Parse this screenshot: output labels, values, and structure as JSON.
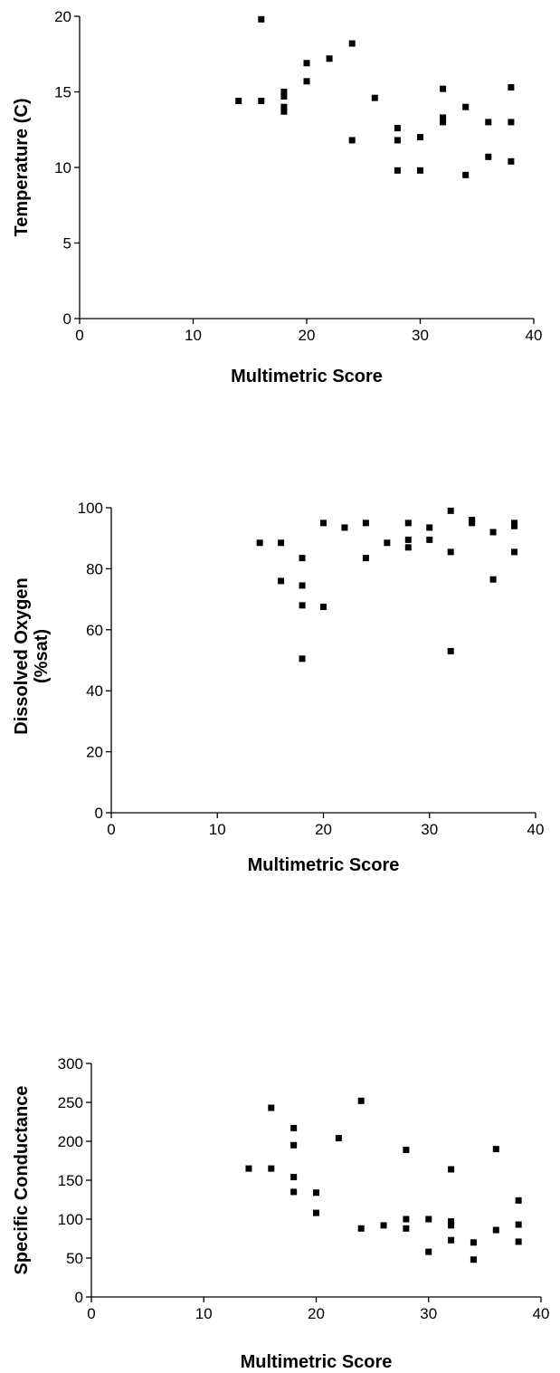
{
  "chart_data": [
    {
      "type": "scatter",
      "xlabel": "Multimetric Score",
      "ylabel": [
        "Temperature (C)"
      ],
      "xlim": [
        0,
        40
      ],
      "ylim": [
        0,
        20
      ],
      "x_ticks": [
        0,
        10,
        20,
        30,
        40
      ],
      "y_ticks": [
        0,
        5,
        10,
        15,
        20
      ],
      "grid": false,
      "marker": "square",
      "color": "#000000",
      "points": [
        {
          "x": 14,
          "y": 14.4
        },
        {
          "x": 16,
          "y": 19.8
        },
        {
          "x": 16,
          "y": 14.4
        },
        {
          "x": 18,
          "y": 15.0
        },
        {
          "x": 18,
          "y": 14.7
        },
        {
          "x": 18,
          "y": 14.0
        },
        {
          "x": 18,
          "y": 13.7
        },
        {
          "x": 20,
          "y": 16.9
        },
        {
          "x": 20,
          "y": 15.7
        },
        {
          "x": 22,
          "y": 17.2
        },
        {
          "x": 24,
          "y": 18.2
        },
        {
          "x": 24,
          "y": 11.8
        },
        {
          "x": 26,
          "y": 14.6
        },
        {
          "x": 28,
          "y": 12.6
        },
        {
          "x": 28,
          "y": 11.8
        },
        {
          "x": 28,
          "y": 9.8
        },
        {
          "x": 30,
          "y": 12.0
        },
        {
          "x": 30,
          "y": 9.8
        },
        {
          "x": 32,
          "y": 15.2
        },
        {
          "x": 32,
          "y": 13.3
        },
        {
          "x": 32,
          "y": 13.0
        },
        {
          "x": 34,
          "y": 14.0
        },
        {
          "x": 34,
          "y": 9.5
        },
        {
          "x": 36,
          "y": 13.0
        },
        {
          "x": 36,
          "y": 10.7
        },
        {
          "x": 38,
          "y": 15.3
        },
        {
          "x": 38,
          "y": 13.0
        },
        {
          "x": 38,
          "y": 10.4
        }
      ]
    },
    {
      "type": "scatter",
      "xlabel": "Multimetric Score",
      "ylabel": [
        "Dissolved Oxygen",
        "(%sat)"
      ],
      "xlim": [
        0,
        40
      ],
      "ylim": [
        0,
        100
      ],
      "x_ticks": [
        0,
        10,
        20,
        30,
        40
      ],
      "y_ticks": [
        0,
        20,
        40,
        60,
        80,
        100
      ],
      "grid": false,
      "marker": "square",
      "color": "#000000",
      "points": [
        {
          "x": 14,
          "y": 88.5
        },
        {
          "x": 16,
          "y": 88.5
        },
        {
          "x": 16,
          "y": 76.0
        },
        {
          "x": 18,
          "y": 83.5
        },
        {
          "x": 18,
          "y": 74.5
        },
        {
          "x": 18,
          "y": 68.0
        },
        {
          "x": 18,
          "y": 50.5
        },
        {
          "x": 20,
          "y": 95.0
        },
        {
          "x": 20,
          "y": 67.5
        },
        {
          "x": 22,
          "y": 93.5
        },
        {
          "x": 24,
          "y": 95.0
        },
        {
          "x": 24,
          "y": 83.5
        },
        {
          "x": 26,
          "y": 88.5
        },
        {
          "x": 28,
          "y": 95.0
        },
        {
          "x": 28,
          "y": 89.5
        },
        {
          "x": 28,
          "y": 87.0
        },
        {
          "x": 30,
          "y": 93.5
        },
        {
          "x": 30,
          "y": 89.5
        },
        {
          "x": 32,
          "y": 99.0
        },
        {
          "x": 32,
          "y": 85.5
        },
        {
          "x": 32,
          "y": 53.0
        },
        {
          "x": 34,
          "y": 96.0
        },
        {
          "x": 34,
          "y": 95.0
        },
        {
          "x": 36,
          "y": 92.0
        },
        {
          "x": 36,
          "y": 76.5
        },
        {
          "x": 38,
          "y": 95.0
        },
        {
          "x": 38,
          "y": 94.0
        },
        {
          "x": 38,
          "y": 85.5
        }
      ]
    },
    {
      "type": "scatter",
      "xlabel": "Multimetric Score",
      "ylabel": [
        "Specific Conductance"
      ],
      "xlim": [
        0,
        40
      ],
      "ylim": [
        0,
        300
      ],
      "x_ticks": [
        0,
        10,
        20,
        30,
        40
      ],
      "y_ticks": [
        0,
        50,
        100,
        150,
        200,
        250,
        300
      ],
      "grid": false,
      "marker": "square",
      "color": "#000000",
      "points": [
        {
          "x": 14,
          "y": 165
        },
        {
          "x": 16,
          "y": 243
        },
        {
          "x": 16,
          "y": 165
        },
        {
          "x": 18,
          "y": 217
        },
        {
          "x": 18,
          "y": 195
        },
        {
          "x": 18,
          "y": 154
        },
        {
          "x": 18,
          "y": 135
        },
        {
          "x": 20,
          "y": 134
        },
        {
          "x": 20,
          "y": 108
        },
        {
          "x": 22,
          "y": 204
        },
        {
          "x": 24,
          "y": 252
        },
        {
          "x": 24,
          "y": 88
        },
        {
          "x": 26,
          "y": 92
        },
        {
          "x": 28,
          "y": 189
        },
        {
          "x": 28,
          "y": 100
        },
        {
          "x": 28,
          "y": 88
        },
        {
          "x": 30,
          "y": 100
        },
        {
          "x": 30,
          "y": 58
        },
        {
          "x": 32,
          "y": 164
        },
        {
          "x": 32,
          "y": 97
        },
        {
          "x": 32,
          "y": 92
        },
        {
          "x": 32,
          "y": 73
        },
        {
          "x": 34,
          "y": 70
        },
        {
          "x": 34,
          "y": 48
        },
        {
          "x": 36,
          "y": 190
        },
        {
          "x": 36,
          "y": 86
        },
        {
          "x": 38,
          "y": 124
        },
        {
          "x": 38,
          "y": 93
        },
        {
          "x": 38,
          "y": 71
        }
      ]
    }
  ]
}
